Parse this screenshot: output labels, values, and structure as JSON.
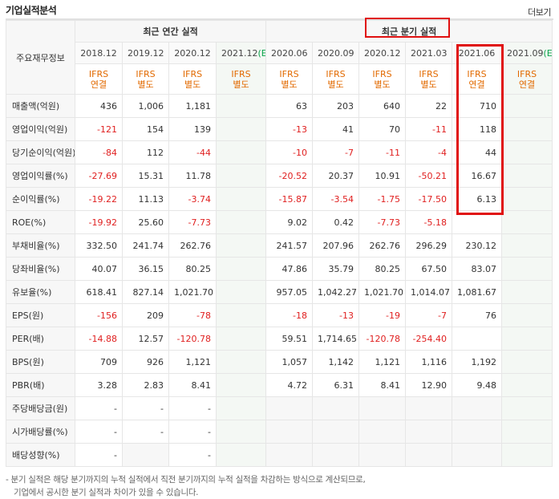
{
  "header": {
    "title": "기업실적분석",
    "more_label": "더보기"
  },
  "table": {
    "corner_label": "주요재무정보",
    "annual_group": "최근 연간 실적",
    "quarterly_group": "최근 분기 실적",
    "periods": [
      "2018.12",
      "2019.12",
      "2020.12",
      "2021.12",
      "2020.06",
      "2020.09",
      "2020.12",
      "2021.03",
      "2021.06",
      "2021.09"
    ],
    "estimate_mark": "(E)",
    "ifrs": [
      {
        "l1": "IFRS",
        "l2": "연결"
      },
      {
        "l1": "IFRS",
        "l2": "별도"
      },
      {
        "l1": "IFRS",
        "l2": "별도"
      },
      {
        "l1": "IFRS",
        "l2": "별도"
      },
      {
        "l1": "IFRS",
        "l2": "별도"
      },
      {
        "l1": "IFRS",
        "l2": "별도"
      },
      {
        "l1": "IFRS",
        "l2": "별도"
      },
      {
        "l1": "IFRS",
        "l2": "별도"
      },
      {
        "l1": "IFRS",
        "l2": "연결"
      },
      {
        "l1": "IFRS",
        "l2": "연결"
      }
    ],
    "rows": [
      {
        "label": "매출액(억원)",
        "values": [
          "436",
          "1,006",
          "1,181",
          "",
          "63",
          "203",
          "640",
          "22",
          "710",
          ""
        ]
      },
      {
        "label": "영업이익(억원)",
        "values": [
          "-121",
          "154",
          "139",
          "",
          "-13",
          "41",
          "70",
          "-11",
          "118",
          ""
        ]
      },
      {
        "label": "당기순이익(억원)",
        "values": [
          "-84",
          "112",
          "-44",
          "",
          "-10",
          "-7",
          "-11",
          "-4",
          "44",
          ""
        ]
      },
      {
        "label": "영업이익률(%)",
        "values": [
          "-27.69",
          "15.31",
          "11.78",
          "",
          "-20.52",
          "20.37",
          "10.91",
          "-50.21",
          "16.67",
          ""
        ]
      },
      {
        "label": "순이익률(%)",
        "values": [
          "-19.22",
          "11.13",
          "-3.74",
          "",
          "-15.87",
          "-3.54",
          "-1.75",
          "-17.50",
          "6.13",
          ""
        ]
      },
      {
        "label": "ROE(%)",
        "values": [
          "-19.92",
          "25.60",
          "-7.73",
          "",
          "9.02",
          "0.42",
          "-7.73",
          "-5.18",
          "",
          ""
        ]
      },
      {
        "label": "부채비율(%)",
        "values": [
          "332.50",
          "241.74",
          "262.76",
          "",
          "241.57",
          "207.96",
          "262.76",
          "296.29",
          "230.12",
          ""
        ]
      },
      {
        "label": "당좌비율(%)",
        "values": [
          "40.07",
          "36.15",
          "80.25",
          "",
          "47.86",
          "35.79",
          "80.25",
          "67.50",
          "83.07",
          ""
        ]
      },
      {
        "label": "유보율(%)",
        "values": [
          "618.41",
          "827.14",
          "1,021.70",
          "",
          "957.05",
          "1,042.27",
          "1,021.70",
          "1,014.07",
          "1,081.67",
          ""
        ]
      },
      {
        "label": "EPS(원)",
        "values": [
          "-156",
          "209",
          "-78",
          "",
          "-18",
          "-13",
          "-19",
          "-7",
          "76",
          ""
        ]
      },
      {
        "label": "PER(배)",
        "values": [
          "-14.88",
          "12.57",
          "-120.78",
          "",
          "59.51",
          "1,714.65",
          "-120.78",
          "-254.40",
          "",
          ""
        ]
      },
      {
        "label": "BPS(원)",
        "values": [
          "709",
          "926",
          "1,121",
          "",
          "1,057",
          "1,142",
          "1,121",
          "1,116",
          "1,192",
          ""
        ]
      },
      {
        "label": "PBR(배)",
        "values": [
          "3.28",
          "2.83",
          "8.41",
          "",
          "4.72",
          "6.31",
          "8.41",
          "12.90",
          "9.48",
          ""
        ]
      },
      {
        "label": "주당배당금(원)",
        "values": [
          "-",
          "-",
          "-",
          "",
          "",
          "",
          "",
          "",
          "",
          ""
        ]
      },
      {
        "label": "시가배당률(%)",
        "values": [
          "-",
          "-",
          "-",
          "",
          "",
          "",
          "",
          "",
          "",
          ""
        ]
      },
      {
        "label": "배당성향(%)",
        "values": [
          "-",
          "",
          "-",
          "",
          "",
          "",
          "",
          "",
          "",
          ""
        ]
      }
    ]
  },
  "notes": [
    "- 분기 실적은 해당 분기까지의 누적 실적에서 직전 분기까지의 누적 실적을 차감하는 방식으로 계산되므로,",
    "  기업에서 공시한 분기 실적과 차이가 있을 수 있습니다."
  ],
  "colors": {
    "negative": "#e02020",
    "ifrs_text": "#e26a00",
    "estimate": "#0aa34a",
    "highlight": "#e01010"
  }
}
